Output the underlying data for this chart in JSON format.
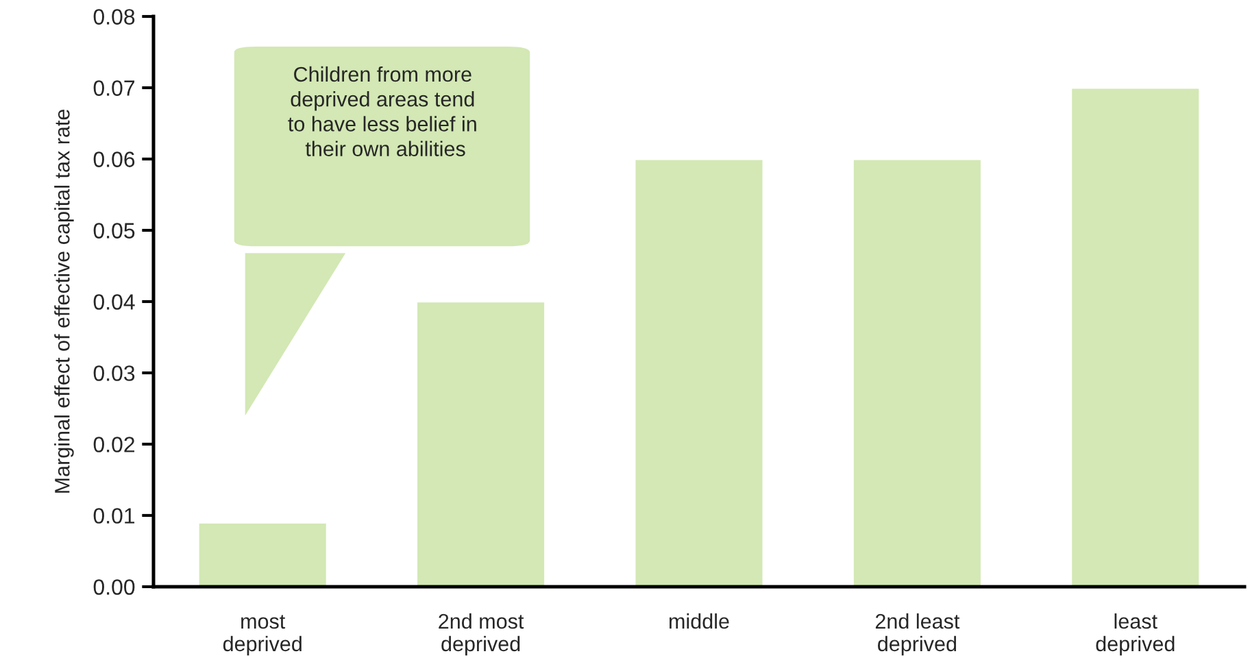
{
  "chart_data": {
    "type": "bar",
    "ylabel": "Marginal effect of effective capital tax rate",
    "categories": [
      "most\ndeprived",
      "2nd most\ndeprived",
      "middle",
      "2nd least\ndeprived",
      "least\ndeprived"
    ],
    "values": [
      0.009,
      0.04,
      0.06,
      0.06,
      0.07
    ],
    "color": "#d3e8b4",
    "ylim": [
      0,
      0.08
    ],
    "yticks": [
      {
        "value": 0,
        "label": "0.00"
      },
      {
        "value": 0.01,
        "label": "0.01"
      },
      {
        "value": 0.02,
        "label": "0.02"
      },
      {
        "value": 0.03,
        "label": "0.03"
      },
      {
        "value": 0.04,
        "label": "0.04"
      },
      {
        "value": 0.05,
        "label": "0.05"
      },
      {
        "value": 0.06,
        "label": "0.06"
      },
      {
        "value": 0.07,
        "label": "0.07"
      },
      {
        "value": 0.08,
        "label": "0.08"
      }
    ],
    "annotations": [
      "Children from more\ndeprived areas tend\nto have less belief in\n their own abilities"
    ],
    "grid": false
  }
}
